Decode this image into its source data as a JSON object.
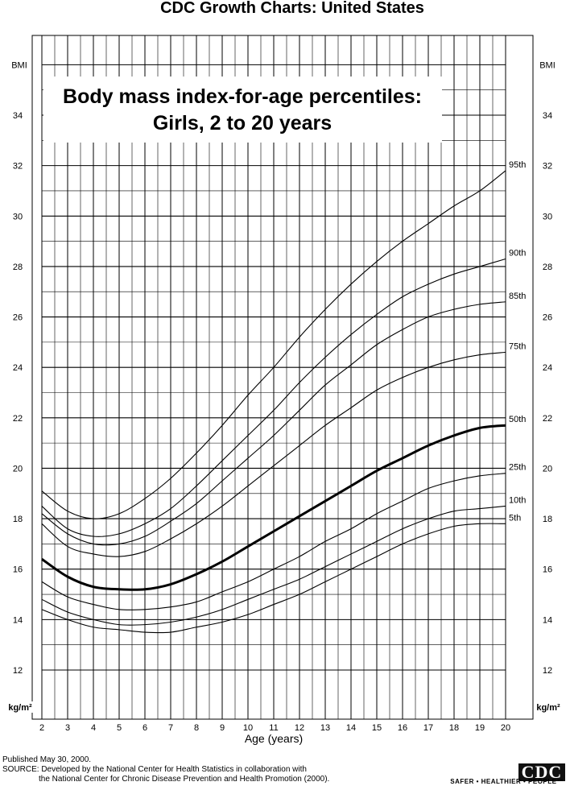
{
  "header": "CDC Growth Charts: United States",
  "title_lines": [
    "Body mass index-for-age percentiles:",
    "Girls, 2 to 20 years"
  ],
  "footer": {
    "published": "Published May 30, 2000.",
    "source_line1": "SOURCE: Developed by the National Center for Health Statistics in collaboration with",
    "source_line2": "the National Center for Chronic Disease Prevention and Health Promotion (2000).",
    "logo_text": "CDC",
    "tagline": "SAFER • HEALTHIER • PEOPLE™"
  },
  "chart_data": {
    "type": "line",
    "title": "Body mass index-for-age percentiles: Girls, 2 to 20 years",
    "xlabel": "Age (years)",
    "ylabel": "BMI",
    "y_unit": "kg/m²",
    "xlim": [
      2,
      20
    ],
    "ylim": [
      11.4,
      36.4
    ],
    "x_ticks": [
      2,
      3,
      4,
      5,
      6,
      7,
      8,
      9,
      10,
      11,
      12,
      13,
      14,
      15,
      16,
      17,
      18,
      19,
      20
    ],
    "y_ticks": [
      12,
      14,
      16,
      18,
      20,
      22,
      24,
      26,
      28,
      30,
      32,
      34
    ],
    "y_axis_name": "BMI",
    "grid": true,
    "x": [
      2,
      3,
      4,
      5,
      6,
      7,
      8,
      9,
      10,
      11,
      12,
      13,
      14,
      15,
      16,
      17,
      18,
      19,
      20
    ],
    "series": [
      {
        "name": "95th",
        "emphasis": false,
        "values": [
          19.1,
          18.3,
          18.0,
          18.2,
          18.8,
          19.6,
          20.6,
          21.7,
          22.9,
          24.0,
          25.2,
          26.3,
          27.3,
          28.2,
          29.0,
          29.7,
          30.4,
          31.0,
          31.8
        ]
      },
      {
        "name": "90th",
        "emphasis": false,
        "values": [
          18.5,
          17.6,
          17.3,
          17.4,
          17.8,
          18.4,
          19.3,
          20.3,
          21.3,
          22.3,
          23.4,
          24.4,
          25.3,
          26.1,
          26.8,
          27.3,
          27.7,
          28.0,
          28.3
        ]
      },
      {
        "name": "85th",
        "emphasis": false,
        "values": [
          18.2,
          17.4,
          17.0,
          17.0,
          17.3,
          17.9,
          18.6,
          19.5,
          20.4,
          21.3,
          22.3,
          23.3,
          24.1,
          24.9,
          25.5,
          26.0,
          26.3,
          26.5,
          26.6
        ]
      },
      {
        "name": "75th",
        "emphasis": false,
        "values": [
          17.8,
          16.9,
          16.6,
          16.5,
          16.7,
          17.2,
          17.8,
          18.5,
          19.3,
          20.1,
          20.9,
          21.7,
          22.4,
          23.1,
          23.6,
          24.0,
          24.3,
          24.5,
          24.6
        ]
      },
      {
        "name": "50th",
        "emphasis": true,
        "values": [
          16.4,
          15.7,
          15.3,
          15.2,
          15.2,
          15.4,
          15.8,
          16.3,
          16.9,
          17.5,
          18.1,
          18.7,
          19.3,
          19.9,
          20.4,
          20.9,
          21.3,
          21.6,
          21.7
        ]
      },
      {
        "name": "25th",
        "emphasis": false,
        "values": [
          15.5,
          14.9,
          14.6,
          14.4,
          14.4,
          14.5,
          14.7,
          15.1,
          15.5,
          16.0,
          16.5,
          17.1,
          17.6,
          18.2,
          18.7,
          19.2,
          19.5,
          19.7,
          19.8
        ]
      },
      {
        "name": "10th",
        "emphasis": false,
        "values": [
          14.8,
          14.3,
          14.0,
          13.8,
          13.8,
          13.9,
          14.1,
          14.4,
          14.8,
          15.2,
          15.6,
          16.1,
          16.6,
          17.1,
          17.6,
          18.0,
          18.3,
          18.4,
          18.5
        ]
      },
      {
        "name": "5th",
        "emphasis": false,
        "values": [
          14.4,
          14.0,
          13.7,
          13.6,
          13.5,
          13.5,
          13.7,
          13.9,
          14.2,
          14.6,
          15.0,
          15.5,
          16.0,
          16.5,
          17.0,
          17.4,
          17.7,
          17.8,
          17.8
        ]
      }
    ]
  }
}
